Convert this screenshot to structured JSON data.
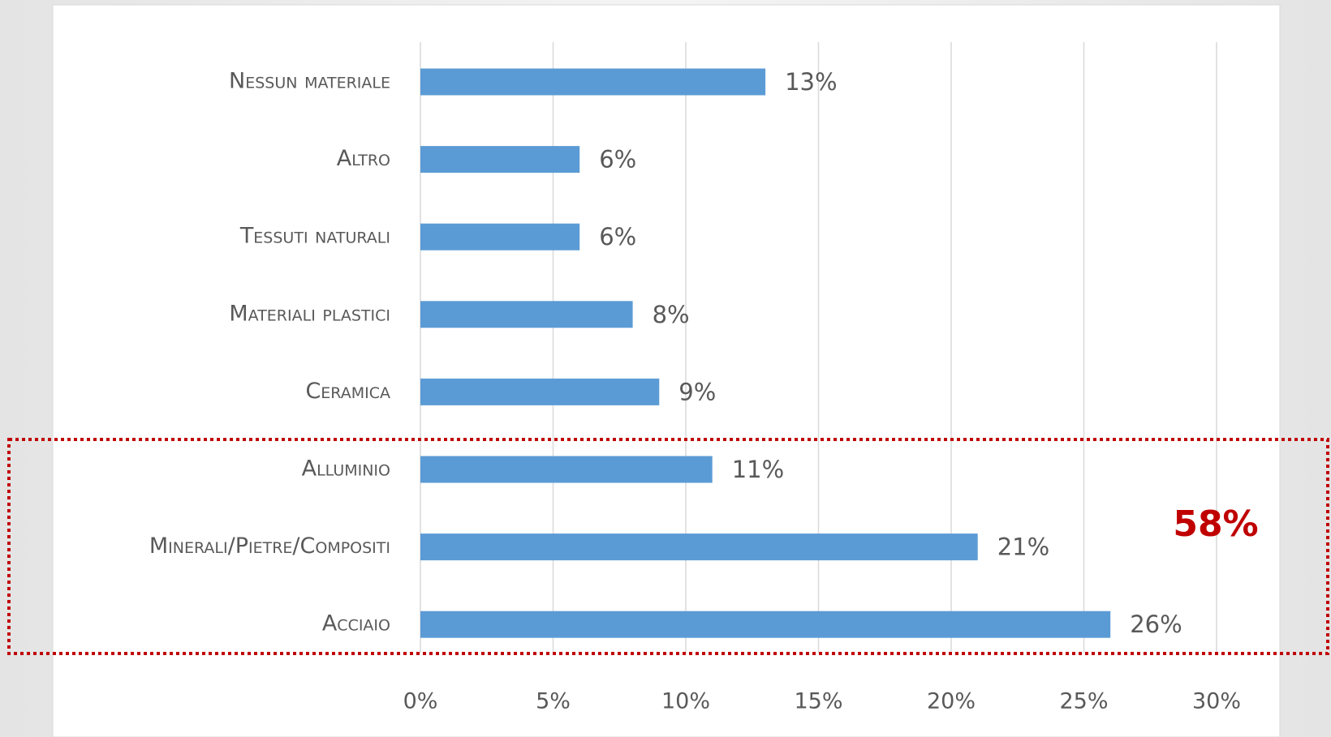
{
  "chart_data": {
    "type": "barh",
    "categories": [
      "Nessun materiale",
      "Altro",
      "Tessuti naturali",
      "Materiali plastici",
      "Ceramica",
      "Alluminio",
      "Minerali/Pietre/Compositi",
      "Acciaio"
    ],
    "values": [
      13,
      6,
      6,
      8,
      9,
      11,
      21,
      26
    ],
    "value_labels": [
      "13%",
      "6%",
      "6%",
      "8%",
      "9%",
      "11%",
      "21%",
      "26%"
    ],
    "color": "#5b9bd5",
    "xlim": [
      0,
      30
    ],
    "xticks": [
      {
        "value": 0,
        "label": "0%"
      },
      {
        "value": 5,
        "label": "5%"
      },
      {
        "value": 10,
        "label": "10%"
      },
      {
        "value": 15,
        "label": "15%"
      },
      {
        "value": 20,
        "label": "20%"
      },
      {
        "value": 25,
        "label": "25%"
      },
      {
        "value": 30,
        "label": "30%"
      }
    ],
    "grid": true,
    "annotation": "58%"
  }
}
